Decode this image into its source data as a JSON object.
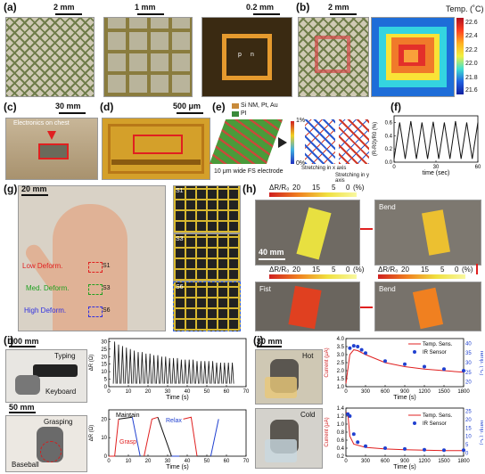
{
  "labels": {
    "a": "(a)",
    "b": "(b)",
    "c": "(c)",
    "d": "(d)",
    "e": "(e)",
    "f": "(f)",
    "g": "(g)",
    "h": "(h)",
    "i": "(i)",
    "j": "(j)"
  },
  "a": {
    "scale1": "2 mm",
    "scale2": "1 mm",
    "scale3": "0.2 mm",
    "chip_left": "p",
    "chip_right": "n"
  },
  "b": {
    "scale": "2 mm",
    "temp_title": "Temp. (˚C)",
    "colorbar_ticks": [
      "22.6",
      "22.4",
      "22.2",
      "22.0",
      "21.8",
      "21.6"
    ]
  },
  "c": {
    "scale": "30 mm",
    "caption": "Electronics on chest"
  },
  "d": {
    "scale": "500 μm"
  },
  "e": {
    "legend": [
      "Si NM, Pt, Au",
      "PI"
    ],
    "colorbar_top": "1%",
    "colorbar_bottom": "0%",
    "electrode": "10 μm wide FS electrode",
    "stretch_x": "Stretching in x axis",
    "stretch_y": "Stretching in y axis"
  },
  "f": {
    "ylabel": "(R-R0)/R0 (%)",
    "xlabel": "time (sec)",
    "yticks": [
      "0.6",
      "0.4",
      "0.2",
      "0.0"
    ],
    "xticks": [
      "0",
      "30",
      "60"
    ]
  },
  "g": {
    "scale": "20 mm",
    "low": "Low Deform.",
    "med": "Med. Deform.",
    "high": "High Deform.",
    "s1": "S1",
    "s3": "S3",
    "s6": "S6"
  },
  "h": {
    "title1": "ΔR/R₀",
    "cb_ticks": [
      "20",
      "15",
      "5",
      "0",
      "(%)"
    ],
    "scale": "40 mm",
    "bend": "Bend",
    "fist": "Fist"
  },
  "i": {
    "scale1": "100 mm",
    "typing": "Typing",
    "keyboard": "Keyboard",
    "scale2": "50 mm",
    "grasping": "Grasping",
    "baseball": "Baseball",
    "ylabel": "ΔR (Ω)",
    "xlabel": "Time (s)",
    "yticks_top": [
      "30",
      "25",
      "20",
      "15",
      "10",
      "5",
      "0"
    ],
    "yticks_bottom": [
      "20",
      "10",
      "0"
    ],
    "xticks": [
      "0",
      "10",
      "20",
      "30",
      "40",
      "50",
      "60",
      "70"
    ],
    "maintain": "Maintain",
    "relax": "Relax",
    "grasp": "Grasp"
  },
  "j": {
    "scale": "30 mm",
    "hot": "Hot",
    "cold": "Cold",
    "ylabel_left": "Current (μA)",
    "ylabel_right": "Temp. (°C)",
    "xlabel": "Time (s)",
    "xticks": [
      "0",
      "300",
      "600",
      "900",
      "1200",
      "1500",
      "1800"
    ],
    "yticks_left_hot": [
      "4.0",
      "3.5",
      "3.0",
      "2.5",
      "2.0",
      "1.5",
      "1.0"
    ],
    "yticks_right_hot": [
      "40",
      "35",
      "30",
      "25",
      "20"
    ],
    "yticks_left_cold": [
      "1.4",
      "1.2",
      "1.0",
      "0.8",
      "0.6",
      "0.4",
      "0.2"
    ],
    "yticks_right_cold": [
      "25",
      "20",
      "15",
      "10",
      "5",
      "0"
    ],
    "legend_line": "Temp. Sens.",
    "legend_dot": "IR Sensor"
  },
  "chart_data": [
    {
      "type": "line",
      "ylabel": "(R-R0)/R0 (%)",
      "xlabel": "time (sec)",
      "xlim": [
        0,
        60
      ],
      "ylim": [
        0,
        0.7
      ],
      "series": [
        {
          "x": [
            0,
            4,
            8,
            12,
            16,
            20,
            24,
            28,
            32,
            36,
            40,
            44,
            48,
            52,
            56,
            60
          ],
          "values": [
            0.05,
            0.6,
            0.05,
            0.62,
            0.05,
            0.6,
            0.05,
            0.61,
            0.05,
            0.6,
            0.05,
            0.62,
            0.05,
            0.6,
            0.05,
            0.6
          ]
        }
      ]
    },
    {
      "type": "line",
      "ylabel": "ΔR (Ω)",
      "xlabel": "Time (s)",
      "xlim": [
        0,
        70
      ],
      "ylim": [
        0,
        32
      ],
      "series": [
        {
          "x": [
            3,
            5,
            7,
            9,
            11,
            13,
            15,
            17,
            19,
            21,
            23,
            25,
            27,
            29,
            31,
            33,
            35,
            37,
            39,
            41,
            43,
            45,
            47,
            49,
            51,
            53,
            55,
            57,
            59,
            61,
            63
          ],
          "values": [
            30,
            28,
            27,
            26,
            25,
            24,
            23,
            23,
            22,
            22,
            21,
            21,
            20,
            20,
            19,
            19,
            19,
            18,
            18,
            18,
            18,
            17,
            17,
            17,
            17,
            17,
            16,
            16,
            16,
            16,
            16
          ]
        }
      ]
    },
    {
      "type": "line",
      "ylabel": "ΔR (Ω)",
      "xlabel": "Time (s)",
      "xlim": [
        0,
        70
      ],
      "ylim": [
        0,
        25
      ],
      "series": [
        {
          "name": "Grasp",
          "x": [
            0,
            3,
            5,
            12,
            16,
            18,
            22,
            25,
            32,
            36,
            38,
            42,
            45,
            52,
            56,
            58,
            65
          ],
          "values": [
            0,
            0,
            20,
            21,
            0,
            0,
            20,
            21,
            0,
            0,
            20,
            21,
            0,
            0,
            20,
            21,
            0
          ]
        }
      ]
    },
    {
      "type": "line",
      "ylabel": "Current (μA)",
      "xlabel": "Time (s)",
      "xlim": [
        0,
        1800
      ],
      "ylim": [
        1.0,
        4.0
      ],
      "series": [
        {
          "name": "Temp. Sens.",
          "x": [
            0,
            60,
            120,
            180,
            300,
            600,
            900,
            1200,
            1500,
            1800
          ],
          "values": [
            1.2,
            3.0,
            3.3,
            3.25,
            3.0,
            2.5,
            2.25,
            2.1,
            2.0,
            1.9
          ]
        },
        {
          "name": "IR Sensor",
          "x": [
            60,
            120,
            180,
            240,
            300,
            600,
            900,
            1200,
            1500,
            1800
          ],
          "values": [
            3.4,
            3.55,
            3.5,
            3.3,
            3.1,
            2.6,
            2.4,
            2.25,
            2.1,
            2.0
          ]
        }
      ]
    },
    {
      "type": "line",
      "ylabel": "Current (μA)",
      "xlabel": "Time (s)",
      "xlim": [
        0,
        1800
      ],
      "ylim": [
        0.2,
        1.4
      ],
      "series": [
        {
          "name": "Temp. Sens.",
          "x": [
            0,
            30,
            60,
            120,
            300,
            600,
            900,
            1200,
            1500,
            1800
          ],
          "values": [
            1.3,
            1.25,
            0.7,
            0.5,
            0.42,
            0.38,
            0.36,
            0.35,
            0.34,
            0.34
          ]
        },
        {
          "name": "IR Sensor",
          "x": [
            30,
            60,
            120,
            180,
            300,
            600,
            900,
            1200,
            1500,
            1800
          ],
          "values": [
            1.25,
            1.2,
            0.75,
            0.55,
            0.45,
            0.4,
            0.38,
            0.36,
            0.35,
            0.35
          ]
        }
      ]
    }
  ]
}
